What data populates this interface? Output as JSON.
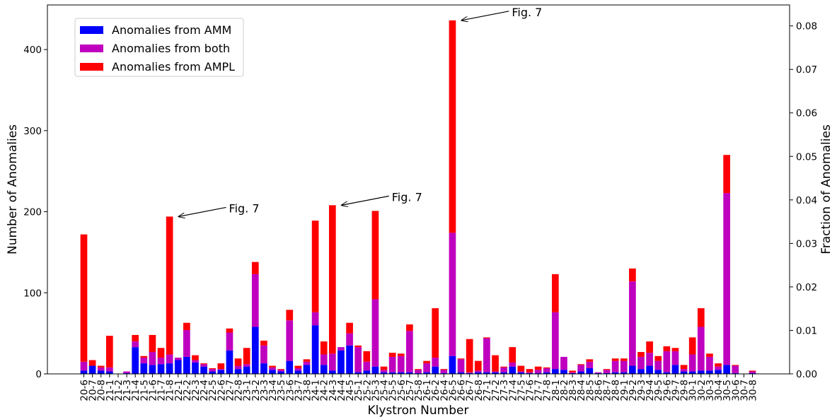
{
  "chart_data": {
    "type": "bar",
    "stacked": true,
    "xlabel": "Klystron Number",
    "ylabel": "Number of Anomalies",
    "y2label": "Fraction of Anomalies",
    "ylim": [
      0,
      455
    ],
    "y2lim": [
      0,
      0.08482
    ],
    "yticks": [
      0,
      100,
      200,
      300,
      400
    ],
    "y2ticks": [
      "0.00",
      "0.01",
      "0.02",
      "0.03",
      "0.04",
      "0.05",
      "0.06",
      "0.07",
      "0.08"
    ],
    "legend_position": "top-left",
    "categories": [
      "20-6",
      "20-7",
      "20-8",
      "21-1",
      "21-2",
      "21-3",
      "21-4",
      "21-5",
      "21-6",
      "21-7",
      "21-8",
      "22-1",
      "22-2",
      "22-3",
      "22-4",
      "22-5",
      "22-6",
      "22-7",
      "22-8",
      "23-1",
      "23-2",
      "23-3",
      "23-4",
      "23-5",
      "23-6",
      "23-7",
      "23-8",
      "24-1",
      "24-2",
      "24-3",
      "24-4",
      "24-5",
      "25-1",
      "25-2",
      "25-3",
      "25-4",
      "25-5",
      "25-6",
      "25-7",
      "25-8",
      "26-1",
      "26-2",
      "26-4",
      "26-5",
      "26-6",
      "26-7",
      "26-8",
      "27-1",
      "27-2",
      "27-3",
      "27-4",
      "27-5",
      "27-6",
      "27-7",
      "27-8",
      "28-1",
      "28-2",
      "28-3",
      "28-4",
      "28-5",
      "28-6",
      "28-7",
      "28-8",
      "29-1",
      "29-2",
      "29-3",
      "29-4",
      "29-5",
      "29-6",
      "29-7",
      "29-8",
      "30-1",
      "30-2",
      "30-3",
      "30-4",
      "30-5",
      "30-6",
      "30-7",
      "30-8"
    ],
    "series": [
      {
        "name": "Anomalies from AMM",
        "color": "#0000ff",
        "values": [
          4,
          10,
          4,
          3,
          0,
          1,
          33,
          13,
          11,
          12,
          13,
          17,
          21,
          14,
          9,
          3,
          5,
          29,
          6,
          9,
          58,
          13,
          5,
          3,
          16,
          4,
          11,
          60,
          11,
          4,
          29,
          35,
          2,
          4,
          9,
          2,
          2,
          2,
          2,
          1,
          2,
          9,
          1,
          22,
          2,
          1,
          2,
          2,
          2,
          2,
          9,
          2,
          1,
          1,
          2,
          6,
          5,
          1,
          3,
          7,
          1,
          1,
          2,
          2,
          10,
          6,
          10,
          5,
          2,
          11,
          3,
          3,
          4,
          4,
          5,
          11,
          1,
          0,
          1
        ]
      },
      {
        "name": "Anomalies from both",
        "color": "#bf00bf",
        "values": [
          11,
          0,
          4,
          5,
          0,
          2,
          7,
          7,
          16,
          8,
          11,
          3,
          33,
          3,
          3,
          3,
          1,
          22,
          4,
          3,
          65,
          22,
          3,
          2,
          50,
          3,
          4,
          16,
          13,
          21,
          4,
          15,
          31,
          11,
          83,
          3,
          19,
          20,
          51,
          4,
          11,
          11,
          4,
          152,
          16,
          1,
          2,
          42,
          1,
          6,
          5,
          1,
          1,
          4,
          5,
          70,
          16,
          1,
          8,
          8,
          1,
          4,
          14,
          14,
          104,
          15,
          16,
          11,
          26,
          17,
          3,
          21,
          54,
          17,
          4,
          212,
          9,
          0,
          2
        ]
      },
      {
        "name": "Anomalies from AMPL",
        "color": "#ff0000",
        "values": [
          157,
          7,
          2,
          39,
          0,
          0,
          8,
          2,
          21,
          12,
          170,
          0,
          9,
          6,
          1,
          1,
          7,
          5,
          9,
          20,
          15,
          6,
          2,
          1,
          13,
          3,
          3,
          113,
          16,
          183,
          0,
          13,
          2,
          13,
          109,
          4,
          5,
          3,
          8,
          1,
          3,
          61,
          1,
          262,
          1,
          41,
          12,
          1,
          20,
          1,
          19,
          7,
          4,
          4,
          1,
          47,
          0,
          2,
          1,
          3,
          0,
          1,
          3,
          3,
          16,
          6,
          14,
          6,
          6,
          4,
          5,
          21,
          23,
          4,
          4,
          47,
          1,
          0,
          1
        ]
      }
    ],
    "annotations": [
      {
        "text": "Fig. 7",
        "target_category": "22-1",
        "target_value": 194
      },
      {
        "text": "Fig. 7",
        "target_category": "24-4",
        "target_value": 208
      },
      {
        "text": "Fig. 7",
        "target_category": "26-6",
        "target_value": 436
      }
    ]
  }
}
